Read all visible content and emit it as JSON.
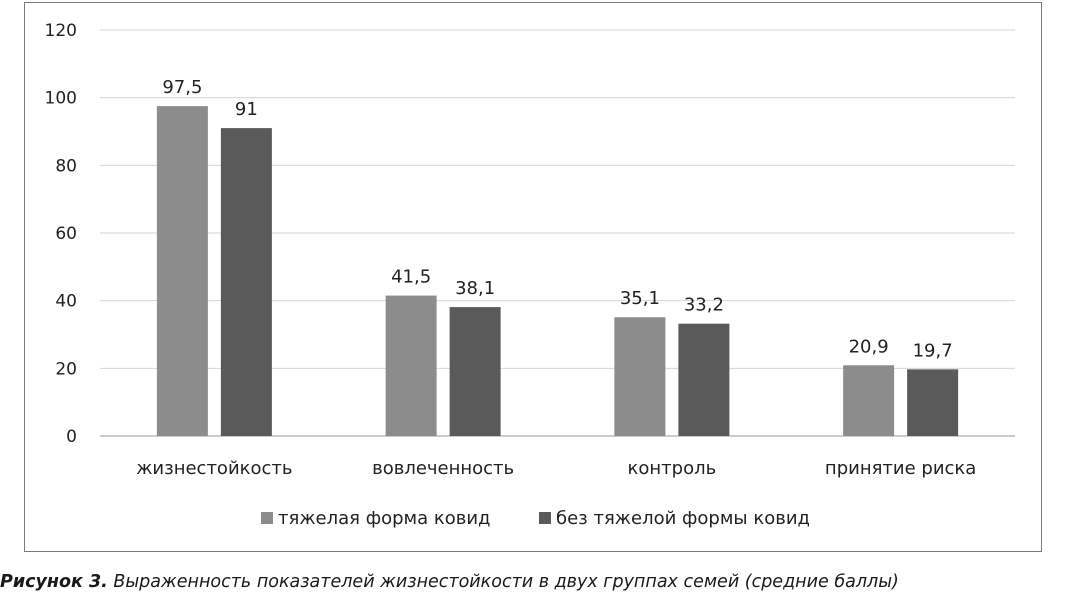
{
  "chart_data": {
    "type": "bar",
    "categories": [
      "жизнестойкость",
      "вовлеченность",
      "контроль",
      "принятие риска"
    ],
    "series": [
      {
        "name": "тяжелая форма ковид",
        "values": [
          97.5,
          41.5,
          35.1,
          20.9
        ],
        "labels": [
          "97,5",
          "41,5",
          "35,1",
          "20,9"
        ],
        "color": "#8c8c8c"
      },
      {
        "name": "без тяжелой формы ковид",
        "values": [
          91,
          38.1,
          33.2,
          19.7
        ],
        "labels": [
          "91",
          "38,1",
          "33,2",
          "19,7"
        ],
        "color": "#5a5a5a"
      }
    ],
    "yticks": [
      "0",
      "20",
      "40",
      "60",
      "80",
      "100",
      "120"
    ],
    "ylim": [
      0,
      120
    ],
    "grid": true,
    "legend_position": "bottom"
  },
  "caption": {
    "label": "Рисунок 3.",
    "text": " Выраженность показателей жизнестойкости в двух группах семей (средние баллы)"
  }
}
